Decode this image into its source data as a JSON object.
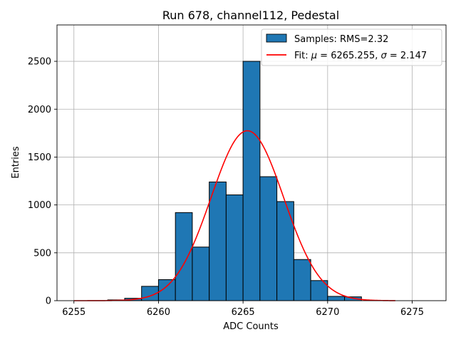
{
  "chart_data": {
    "type": "bar",
    "title": "Run 678, channel112, Pedestal",
    "xlabel": "ADC Counts",
    "ylabel": "Entries",
    "xlim": [
      6254,
      6277
    ],
    "ylim": [
      0,
      2880
    ],
    "xticks": [
      6255,
      6260,
      6265,
      6270,
      6275
    ],
    "yticks": [
      0,
      500,
      1000,
      1500,
      2000,
      2500
    ],
    "grid": true,
    "legend_position": "top-right",
    "histogram": {
      "name": "Samples: RMS=2.32",
      "color": "#1f77b4",
      "bins": [
        {
          "x0": 6257.0,
          "x1": 6258.0,
          "count": 8
        },
        {
          "x0": 6258.0,
          "x1": 6259.0,
          "count": 25
        },
        {
          "x0": 6259.0,
          "x1": 6260.0,
          "count": 150
        },
        {
          "x0": 6260.0,
          "x1": 6261.0,
          "count": 220
        },
        {
          "x0": 6261.0,
          "x1": 6262.0,
          "count": 920
        },
        {
          "x0": 6262.0,
          "x1": 6263.0,
          "count": 560
        },
        {
          "x0": 6263.0,
          "x1": 6264.0,
          "count": 1240
        },
        {
          "x0": 6264.0,
          "x1": 6265.0,
          "count": 1105
        },
        {
          "x0": 6265.0,
          "x1": 6266.0,
          "count": 2500
        },
        {
          "x0": 6266.0,
          "x1": 6267.0,
          "count": 1295
        },
        {
          "x0": 6267.0,
          "x1": 6268.0,
          "count": 1035
        },
        {
          "x0": 6268.0,
          "x1": 6269.0,
          "count": 430
        },
        {
          "x0": 6269.0,
          "x1": 6270.0,
          "count": 210
        },
        {
          "x0": 6270.0,
          "x1": 6271.0,
          "count": 45
        },
        {
          "x0": 6271.0,
          "x1": 6272.0,
          "count": 40
        }
      ]
    },
    "fit": {
      "name_prefix": "Fit: ",
      "mu_symbol": "μ",
      "mu_text": " = 6265.255, ",
      "sigma_symbol": "σ",
      "sigma_text": " = 2.147",
      "color": "#ff0000",
      "mu": 6265.255,
      "sigma": 2.147,
      "amplitude": 1775,
      "x_range": [
        6255,
        6274
      ]
    }
  }
}
